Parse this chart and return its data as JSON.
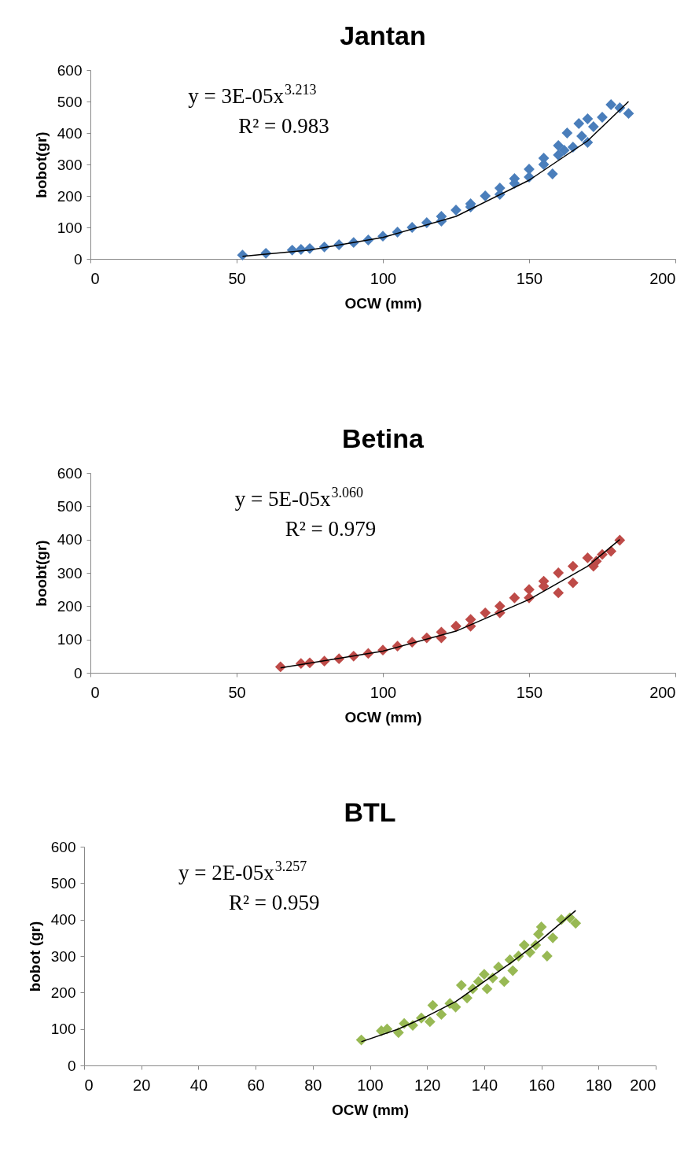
{
  "chart_data": [
    {
      "type": "scatter",
      "title": "Jantan",
      "xlabel": "OCW (mm)",
      "ylabel": "bobot(gr)",
      "xlim": [
        0,
        200
      ],
      "xticks": [
        0,
        50,
        100,
        150,
        200
      ],
      "ylim": [
        0,
        600
      ],
      "yticks": [
        0,
        100,
        200,
        300,
        400,
        500,
        600
      ],
      "marker": "diamond",
      "annotations": [
        "y = 3E-05x$^{3.213}$",
        "R² = 0.983"
      ],
      "series": [
        {
          "color": "#4a7ebb",
          "x": [
            52,
            60,
            69,
            72,
            75,
            80,
            85,
            90,
            95,
            100,
            105,
            110,
            115,
            120,
            125,
            130,
            135,
            140,
            145,
            150,
            155,
            160,
            163,
            167,
            170,
            172,
            175,
            178,
            181,
            184,
            140,
            150,
            160,
            165,
            170,
            130,
            120,
            145,
            155,
            158,
            168,
            162
          ],
          "values": [
            12,
            18,
            28,
            30,
            33,
            38,
            45,
            52,
            60,
            72,
            85,
            100,
            115,
            135,
            155,
            175,
            200,
            225,
            255,
            285,
            320,
            360,
            400,
            430,
            445,
            420,
            450,
            490,
            480,
            462,
            205,
            260,
            330,
            355,
            370,
            165,
            120,
            240,
            300,
            270,
            390,
            345
          ]
        },
        {
          "type": "line",
          "marker": "none",
          "color": "#000000",
          "x": [
            52,
            75,
            100,
            125,
            150,
            170,
            184
          ],
          "values": [
            8,
            28,
            68,
            135,
            250,
            375,
            500
          ]
        }
      ]
    },
    {
      "type": "scatter",
      "title": "Betina",
      "xlabel": "OCW (mm)",
      "ylabel": "boobt(gr)",
      "xlim": [
        0,
        200
      ],
      "xticks": [
        0,
        50,
        100,
        150,
        200
      ],
      "ylim": [
        0,
        600
      ],
      "yticks": [
        0,
        100,
        200,
        300,
        400,
        500,
        600
      ],
      "marker": "diamond",
      "annotations": [
        "y = 5E-05x$^{3.060}$",
        "R² = 0.979"
      ],
      "series": [
        {
          "color": "#be4b48",
          "x": [
            65,
            72,
            75,
            80,
            85,
            90,
            95,
            100,
            105,
            110,
            115,
            120,
            125,
            130,
            135,
            140,
            145,
            150,
            155,
            160,
            165,
            170,
            173,
            175,
            178,
            181,
            140,
            150,
            160,
            165,
            172,
            130,
            155,
            120
          ],
          "values": [
            18,
            28,
            30,
            35,
            42,
            50,
            58,
            68,
            80,
            92,
            105,
            122,
            140,
            160,
            180,
            200,
            225,
            250,
            275,
            300,
            320,
            345,
            335,
            355,
            365,
            398,
            180,
            225,
            240,
            270,
            320,
            140,
            260,
            105
          ]
        },
        {
          "type": "line",
          "marker": "none",
          "color": "#000000",
          "x": [
            65,
            100,
            125,
            150,
            170,
            181
          ],
          "values": [
            15,
            65,
            125,
            220,
            320,
            400
          ]
        }
      ]
    },
    {
      "type": "scatter",
      "title": "BTL",
      "xlabel": "OCW (mm)",
      "ylabel": "bobot (gr)",
      "xlim": [
        0,
        200
      ],
      "xticks": [
        0,
        20,
        40,
        60,
        80,
        100,
        120,
        140,
        160,
        180,
        200
      ],
      "ylim": [
        0,
        600
      ],
      "yticks": [
        0,
        100,
        200,
        300,
        400,
        500,
        600
      ],
      "marker": "diamond",
      "annotations": [
        "y = 2E-05x$^{3.257}$",
        "R² = 0.959"
      ],
      "series": [
        {
          "color": "#98b954",
          "x": [
            97,
            104,
            106,
            110,
            112,
            115,
            118,
            121,
            122,
            125,
            128,
            130,
            132,
            134,
            136,
            138,
            140,
            141,
            143,
            145,
            147,
            149,
            150,
            152,
            154,
            156,
            158,
            159,
            160,
            162,
            164,
            167,
            170,
            172
          ],
          "values": [
            70,
            95,
            100,
            90,
            115,
            110,
            130,
            120,
            165,
            140,
            170,
            160,
            220,
            185,
            210,
            230,
            250,
            210,
            240,
            270,
            230,
            290,
            260,
            300,
            330,
            310,
            330,
            360,
            380,
            300,
            350,
            400,
            405,
            390
          ]
        },
        {
          "type": "line",
          "marker": "none",
          "color": "#000000",
          "x": [
            97,
            110,
            120,
            130,
            140,
            150,
            160,
            172
          ],
          "values": [
            65,
            100,
            135,
            175,
            230,
            285,
            345,
            425
          ]
        }
      ]
    }
  ]
}
